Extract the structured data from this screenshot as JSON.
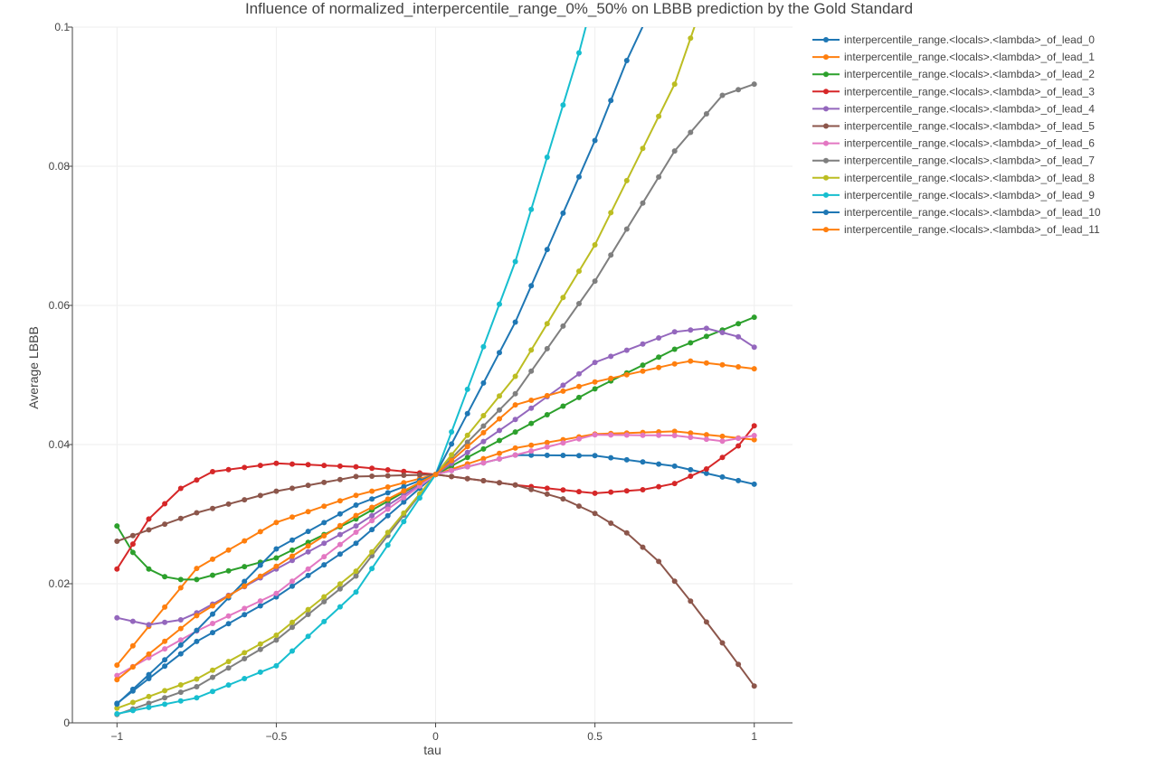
{
  "chart_data": {
    "type": "line",
    "title": "Influence of normalized_interpercentile_range_0%_50% on LBBB prediction by the Gold Standard",
    "xlabel": "tau",
    "ylabel": "Average LBBB",
    "xlim": [
      -1.14,
      1.12
    ],
    "ylim": [
      0,
      0.1
    ],
    "x_ticks": [
      -1,
      -0.5,
      0,
      0.5,
      1
    ],
    "x_tick_labels": [
      "−1",
      "−0.5",
      "0",
      "0.5",
      "1"
    ],
    "y_ticks": [
      0,
      0.02,
      0.04,
      0.06,
      0.08,
      0.1
    ],
    "y_tick_labels": [
      "0",
      "0.02",
      "0.04",
      "0.06",
      "0.08",
      "0.1"
    ],
    "grid": true,
    "legend_position": "top-right",
    "markers": true,
    "x_sample_step": 0.05,
    "series": [
      {
        "name": "interpercentile_range.<locals>.<lambda>_of_lead_0",
        "color": "#1f77b4",
        "anchors": [
          [
            -1,
            0.0028
          ],
          [
            -0.75,
            0.0117
          ],
          [
            -0.5,
            0.0181
          ],
          [
            -0.25,
            0.0258
          ],
          [
            0,
            0.0357
          ],
          [
            0.25,
            0.0385
          ],
          [
            0.5,
            0.0384
          ],
          [
            0.75,
            0.0369
          ],
          [
            1,
            0.0343
          ]
        ]
      },
      {
        "name": "interpercentile_range.<locals>.<lambda>_of_lead_1",
        "color": "#ff7f0e",
        "anchors": [
          [
            -1,
            0.0083
          ],
          [
            -0.75,
            0.0222
          ],
          [
            -0.5,
            0.0288
          ],
          [
            -0.25,
            0.0327
          ],
          [
            0,
            0.0357
          ],
          [
            0.25,
            0.0395
          ],
          [
            0.5,
            0.0415
          ],
          [
            0.75,
            0.0419
          ],
          [
            1,
            0.0407
          ]
        ]
      },
      {
        "name": "interpercentile_range.<locals>.<lambda>_of_lead_2",
        "color": "#2ca02c",
        "anchors": [
          [
            -1,
            0.0283
          ],
          [
            -0.95,
            0.0245
          ],
          [
            -0.9,
            0.0221
          ],
          [
            -0.85,
            0.021
          ],
          [
            -0.8,
            0.0206
          ],
          [
            -0.75,
            0.0206
          ],
          [
            -0.5,
            0.0237
          ],
          [
            -0.25,
            0.0293
          ],
          [
            0,
            0.0357
          ],
          [
            0.25,
            0.0418
          ],
          [
            0.5,
            0.048
          ],
          [
            0.75,
            0.0537
          ],
          [
            1,
            0.0583
          ]
        ]
      },
      {
        "name": "interpercentile_range.<locals>.<lambda>_of_lead_3",
        "color": "#d62728",
        "anchors": [
          [
            -1,
            0.0221
          ],
          [
            -0.9,
            0.0293
          ],
          [
            -0.8,
            0.0337
          ],
          [
            -0.7,
            0.0361
          ],
          [
            -0.5,
            0.0373
          ],
          [
            -0.25,
            0.0368
          ],
          [
            0,
            0.0357
          ],
          [
            0.25,
            0.0342
          ],
          [
            0.5,
            0.033
          ],
          [
            0.65,
            0.0335
          ],
          [
            0.75,
            0.0344
          ],
          [
            0.85,
            0.0365
          ],
          [
            0.95,
            0.0398
          ],
          [
            1,
            0.0427
          ]
        ]
      },
      {
        "name": "interpercentile_range.<locals>.<lambda>_of_lead_4",
        "color": "#9467bd",
        "anchors": [
          [
            -1,
            0.0151
          ],
          [
            -0.9,
            0.0141
          ],
          [
            -0.8,
            0.0148
          ],
          [
            -0.75,
            0.0158
          ],
          [
            -0.5,
            0.0221
          ],
          [
            -0.25,
            0.0283
          ],
          [
            0,
            0.0357
          ],
          [
            0.25,
            0.0436
          ],
          [
            0.5,
            0.0518
          ],
          [
            0.75,
            0.0562
          ],
          [
            0.85,
            0.0567
          ],
          [
            0.95,
            0.0555
          ],
          [
            1,
            0.054
          ]
        ]
      },
      {
        "name": "interpercentile_range.<locals>.<lambda>_of_lead_5",
        "color": "#8c564b",
        "anchors": [
          [
            -1,
            0.0261
          ],
          [
            -0.75,
            0.0302
          ],
          [
            -0.5,
            0.0333
          ],
          [
            -0.25,
            0.0354
          ],
          [
            0,
            0.0357
          ],
          [
            0.25,
            0.0342
          ],
          [
            0.4,
            0.0322
          ],
          [
            0.5,
            0.0301
          ],
          [
            0.6,
            0.0273
          ],
          [
            0.7,
            0.0232
          ],
          [
            0.8,
            0.0175
          ],
          [
            0.9,
            0.0115
          ],
          [
            1,
            0.0053
          ]
        ]
      },
      {
        "name": "interpercentile_range.<locals>.<lambda>_of_lead_6",
        "color": "#e377c2",
        "anchors": [
          [
            -1,
            0.0068
          ],
          [
            -0.75,
            0.0132
          ],
          [
            -0.5,
            0.0186
          ],
          [
            -0.25,
            0.0274
          ],
          [
            0,
            0.0357
          ],
          [
            0.25,
            0.0385
          ],
          [
            0.5,
            0.0414
          ],
          [
            0.75,
            0.0413
          ],
          [
            0.9,
            0.0405
          ],
          [
            1,
            0.0413
          ]
        ]
      },
      {
        "name": "interpercentile_range.<locals>.<lambda>_of_lead_7",
        "color": "#7f7f7f",
        "anchors": [
          [
            -1,
            0.0012
          ],
          [
            -0.75,
            0.0052
          ],
          [
            -0.5,
            0.0119
          ],
          [
            -0.25,
            0.0211
          ],
          [
            0,
            0.0357
          ],
          [
            0.25,
            0.0473
          ],
          [
            0.5,
            0.0635
          ],
          [
            0.75,
            0.0822
          ],
          [
            0.9,
            0.0902
          ],
          [
            1,
            0.0918
          ]
        ]
      },
      {
        "name": "interpercentile_range.<locals>.<lambda>_of_lead_8",
        "color": "#bcbd22",
        "anchors": [
          [
            -1,
            0.0021
          ],
          [
            -0.75,
            0.0063
          ],
          [
            -0.5,
            0.0126
          ],
          [
            -0.25,
            0.0218
          ],
          [
            0,
            0.0357
          ],
          [
            0.25,
            0.0498
          ],
          [
            0.5,
            0.0687
          ],
          [
            0.75,
            0.0918
          ],
          [
            0.85,
            0.105
          ]
        ]
      },
      {
        "name": "interpercentile_range.<locals>.<lambda>_of_lead_9",
        "color": "#17becf",
        "anchors": [
          [
            -1,
            0.0013
          ],
          [
            -0.75,
            0.0036
          ],
          [
            -0.5,
            0.0082
          ],
          [
            -0.25,
            0.0188
          ],
          [
            0,
            0.0357
          ],
          [
            0.25,
            0.0663
          ],
          [
            0.45,
            0.0963
          ],
          [
            0.5,
            0.105
          ]
        ]
      },
      {
        "name": "interpercentile_range.<locals>.<lambda>_of_lead_10",
        "color": "#1f77b4",
        "anchors": [
          [
            -1,
            0.0027
          ],
          [
            -0.75,
            0.0133
          ],
          [
            -0.5,
            0.025
          ],
          [
            -0.25,
            0.0313
          ],
          [
            0,
            0.0357
          ],
          [
            0.25,
            0.0576
          ],
          [
            0.5,
            0.0837
          ],
          [
            0.6,
            0.0952
          ],
          [
            0.7,
            0.105
          ]
        ]
      },
      {
        "name": "interpercentile_range.<locals>.<lambda>_of_lead_11",
        "color": "#ff7f0e",
        "anchors": [
          [
            -1,
            0.0062
          ],
          [
            -0.75,
            0.0154
          ],
          [
            -0.5,
            0.0225
          ],
          [
            -0.25,
            0.0298
          ],
          [
            0,
            0.0357
          ],
          [
            0.25,
            0.0457
          ],
          [
            0.5,
            0.049
          ],
          [
            0.75,
            0.0516
          ],
          [
            0.8,
            0.052
          ],
          [
            1,
            0.0509
          ]
        ]
      }
    ]
  }
}
